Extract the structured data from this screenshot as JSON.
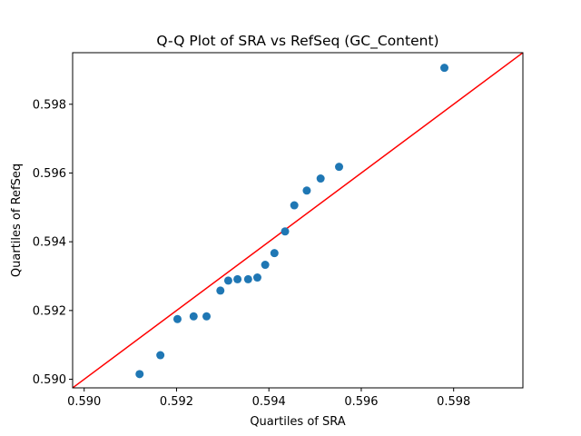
{
  "chart_data": {
    "type": "scatter",
    "title": "Q-Q Plot of SRA vs RefSeq (GC_Content)",
    "xlabel": "Quartiles of SRA",
    "ylabel": "Quartiles of RefSeq",
    "xlim": [
      0.58975,
      0.5995
    ],
    "ylim": [
      0.58975,
      0.5995
    ],
    "xticks": [
      "0.590",
      "0.592",
      "0.594",
      "0.596",
      "0.598"
    ],
    "yticks": [
      "0.590",
      "0.592",
      "0.594",
      "0.596",
      "0.598"
    ],
    "xtick_values": [
      0.59,
      0.592,
      0.594,
      0.596,
      0.598
    ],
    "ytick_values": [
      0.59,
      0.592,
      0.594,
      0.596,
      0.598
    ],
    "grid": false,
    "point_color": "#1f77b4",
    "line_color": "#ff0000",
    "reference_line": "y = x",
    "points": [
      {
        "x": 0.5912,
        "y": 0.59015
      },
      {
        "x": 0.59165,
        "y": 0.5907
      },
      {
        "x": 0.59202,
        "y": 0.59175
      },
      {
        "x": 0.59237,
        "y": 0.59183
      },
      {
        "x": 0.59265,
        "y": 0.59183
      },
      {
        "x": 0.59295,
        "y": 0.59258
      },
      {
        "x": 0.59312,
        "y": 0.59287
      },
      {
        "x": 0.59332,
        "y": 0.59291
      },
      {
        "x": 0.59355,
        "y": 0.59291
      },
      {
        "x": 0.59375,
        "y": 0.59296
      },
      {
        "x": 0.59392,
        "y": 0.59333
      },
      {
        "x": 0.59412,
        "y": 0.59367
      },
      {
        "x": 0.59435,
        "y": 0.5943
      },
      {
        "x": 0.59455,
        "y": 0.59506
      },
      {
        "x": 0.59482,
        "y": 0.59549
      },
      {
        "x": 0.59512,
        "y": 0.59584
      },
      {
        "x": 0.59552,
        "y": 0.59618
      },
      {
        "x": 0.5978,
        "y": 0.59906
      }
    ]
  }
}
